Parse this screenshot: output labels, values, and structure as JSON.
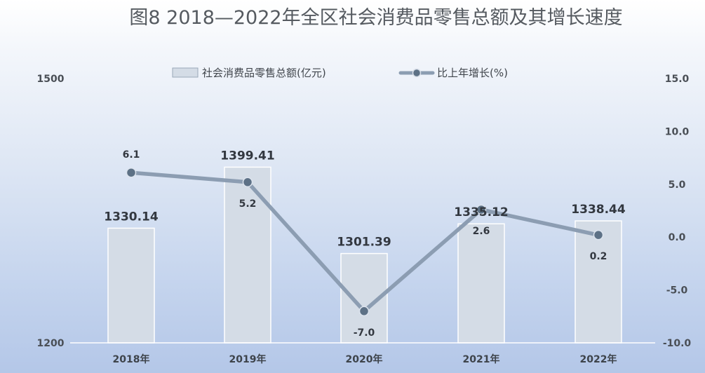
{
  "title": "图8  2018—2022年全区社会消费品零售总额及其增长速度",
  "legend": {
    "bar_label": "社会消费品零售总额(亿元)",
    "line_label": "比上年增长(%)"
  },
  "colors": {
    "bar_fill": "#d4dce6",
    "bar_stroke": "#ffffff",
    "line": "#8c9db2",
    "marker": "#5d7186",
    "baseline": "#ffffff"
  },
  "chart_data": {
    "type": "bar",
    "categories": [
      "2018年",
      "2019年",
      "2020年",
      "2021年",
      "2022年"
    ],
    "series": [
      {
        "name": "社会消费品零售总额(亿元)",
        "type": "bar",
        "axis": "left",
        "values": [
          1330.14,
          1399.41,
          1301.39,
          1335.12,
          1338.44
        ],
        "labels": [
          "1330.14",
          "1399.41",
          "1301.39",
          "1335.12",
          "1338.44"
        ]
      },
      {
        "name": "比上年增长(%)",
        "type": "line",
        "axis": "right",
        "values": [
          6.1,
          5.2,
          -7.0,
          2.6,
          0.2
        ],
        "labels": [
          "6.1",
          "5.2",
          "-7.0",
          "2.6",
          "0.2"
        ]
      }
    ],
    "y_left": {
      "min": 1200,
      "max": 1500,
      "ticks": [
        "1200",
        "1500"
      ]
    },
    "y_right": {
      "min": -10,
      "max": 15,
      "ticks": [
        "15.0",
        "10.0",
        "5.0",
        "0.0",
        "-5.0",
        "-10.0"
      ]
    },
    "legend_position": "top-center",
    "grid": false
  }
}
